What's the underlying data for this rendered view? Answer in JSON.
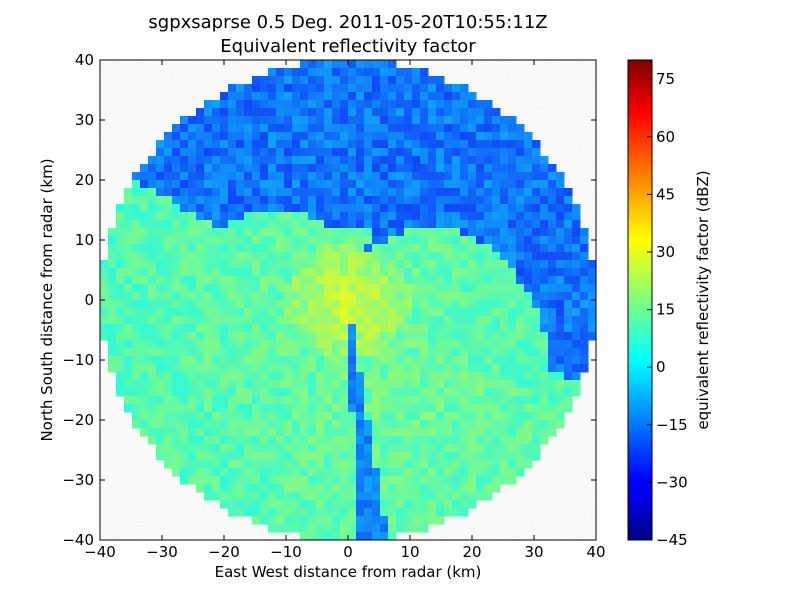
{
  "chart_data": {
    "type": "heatmap",
    "title": "sgpxsaprse 0.5 Deg. 2011-05-20T10:55:11Z",
    "subtitle": "Equivalent reflectivity factor",
    "xlabel": "East West distance from radar (km)",
    "ylabel": "North South distance from radar (km)",
    "xlim": [
      -40,
      40
    ],
    "ylim": [
      -40,
      40
    ],
    "xticks": [
      "−40",
      "−30",
      "−20",
      "−10",
      "0",
      "10",
      "20",
      "30",
      "40"
    ],
    "yticks": [
      "−40",
      "−30",
      "−20",
      "−10",
      "0",
      "10",
      "20",
      "30",
      "40"
    ],
    "grid": false,
    "colormap": "jet",
    "colorbar": {
      "label": "equivalent reflectivity factor (dBZ)",
      "range": [
        -45,
        80
      ],
      "ticks": [
        "−45",
        "−30",
        "−15",
        "0",
        "15",
        "30",
        "45",
        "60",
        "75"
      ],
      "tick_values": [
        -45,
        -30,
        -15,
        0,
        15,
        30,
        45,
        60,
        75
      ]
    },
    "radar_range_km": 40,
    "regions": [
      {
        "name": "clear air / noise",
        "sector": "north to east",
        "approx_dbz": -20
      },
      {
        "name": "widespread echo",
        "sector": "west and south",
        "approx_dbz": 15
      },
      {
        "name": "near-radar core",
        "sector": "center",
        "approx_dbz": 30
      },
      {
        "name": "beam blockage wedge",
        "sector": "south-southeast",
        "approx_dbz": -15
      }
    ]
  }
}
